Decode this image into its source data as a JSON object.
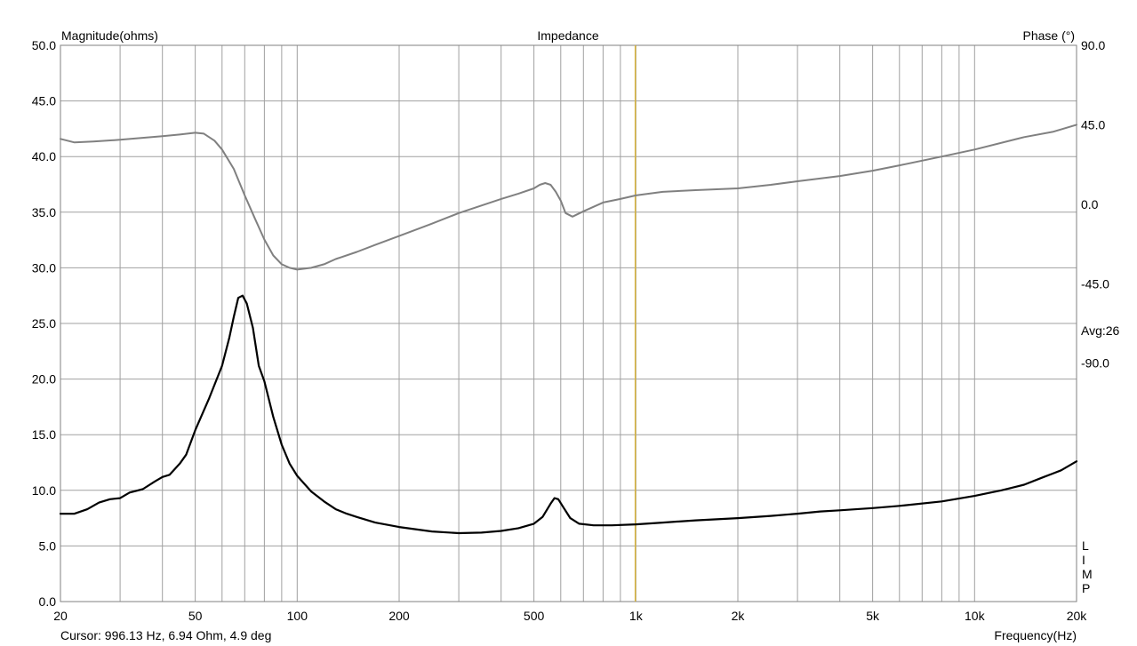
{
  "chart_data": {
    "type": "line",
    "title": "Impedance",
    "xlabel": "Frequency(Hz)",
    "ylabel": "Magnitude(ohms)",
    "y2label": "Phase (°)",
    "x_scale": "log",
    "xlim": [
      20,
      20000
    ],
    "ylim": [
      0,
      50
    ],
    "y2lim": [
      -225,
      90
    ],
    "grid": true,
    "x_ticks": [
      {
        "value": 20,
        "label": "20"
      },
      {
        "value": 50,
        "label": "50"
      },
      {
        "value": 100,
        "label": "100"
      },
      {
        "value": 200,
        "label": "200"
      },
      {
        "value": 500,
        "label": "500"
      },
      {
        "value": 1000,
        "label": "1k"
      },
      {
        "value": 2000,
        "label": "2k"
      },
      {
        "value": 5000,
        "label": "5k"
      },
      {
        "value": 10000,
        "label": "10k"
      },
      {
        "value": 20000,
        "label": "20k"
      }
    ],
    "y_ticks": [
      "0.0",
      "5.0",
      "10.0",
      "15.0",
      "20.0",
      "25.0",
      "30.0",
      "35.0",
      "40.0",
      "45.0",
      "50.0"
    ],
    "y2_ticks": [
      {
        "value": 90,
        "label": "90.0"
      },
      {
        "value": 45,
        "label": "45.0"
      },
      {
        "value": 0,
        "label": "0.0"
      },
      {
        "value": -45,
        "label": "-45.0"
      },
      {
        "value": -90,
        "label": "-90.0"
      }
    ],
    "series": [
      {
        "axis": "left",
        "color": "#000000",
        "points": [
          [
            20,
            7.9
          ],
          [
            22,
            7.9
          ],
          [
            24,
            8.3
          ],
          [
            26,
            8.9
          ],
          [
            28,
            9.2
          ],
          [
            30,
            9.3
          ],
          [
            32,
            9.8
          ],
          [
            35,
            10.1
          ],
          [
            38,
            10.8
          ],
          [
            40,
            11.2
          ],
          [
            42,
            11.4
          ],
          [
            45,
            12.4
          ],
          [
            47,
            13.2
          ],
          [
            50,
            15.4
          ],
          [
            55,
            18.3
          ],
          [
            60,
            21.2
          ],
          [
            63,
            23.7
          ],
          [
            65,
            25.6
          ],
          [
            67,
            27.3
          ],
          [
            69,
            27.5
          ],
          [
            71,
            26.8
          ],
          [
            74,
            24.6
          ],
          [
            77,
            21.2
          ],
          [
            80,
            19.8
          ],
          [
            85,
            16.6
          ],
          [
            90,
            14.1
          ],
          [
            95,
            12.4
          ],
          [
            100,
            11.3
          ],
          [
            110,
            9.9
          ],
          [
            120,
            9.0
          ],
          [
            130,
            8.3
          ],
          [
            140,
            7.9
          ],
          [
            150,
            7.6
          ],
          [
            170,
            7.1
          ],
          [
            200,
            6.7
          ],
          [
            250,
            6.3
          ],
          [
            300,
            6.15
          ],
          [
            350,
            6.2
          ],
          [
            400,
            6.35
          ],
          [
            450,
            6.6
          ],
          [
            500,
            7.0
          ],
          [
            530,
            7.6
          ],
          [
            560,
            8.8
          ],
          [
            575,
            9.3
          ],
          [
            590,
            9.2
          ],
          [
            610,
            8.5
          ],
          [
            640,
            7.5
          ],
          [
            680,
            7.0
          ],
          [
            750,
            6.85
          ],
          [
            850,
            6.85
          ],
          [
            1000,
            6.94
          ],
          [
            1200,
            7.1
          ],
          [
            1500,
            7.3
          ],
          [
            2000,
            7.5
          ],
          [
            2500,
            7.7
          ],
          [
            3000,
            7.9
          ],
          [
            3500,
            8.1
          ],
          [
            4000,
            8.2
          ],
          [
            5000,
            8.4
          ],
          [
            6000,
            8.6
          ],
          [
            8000,
            9.0
          ],
          [
            10000,
            9.5
          ],
          [
            12000,
            10.0
          ],
          [
            14000,
            10.5
          ],
          [
            16000,
            11.2
          ],
          [
            17000,
            11.5
          ],
          [
            18000,
            11.8
          ],
          [
            20000,
            12.6
          ]
        ]
      },
      {
        "axis": "right",
        "color": "#808080",
        "points": [
          [
            20,
            37
          ],
          [
            22,
            35
          ],
          [
            25,
            35.5
          ],
          [
            30,
            36.5
          ],
          [
            40,
            38.5
          ],
          [
            45,
            39.5
          ],
          [
            50,
            40.5
          ],
          [
            53,
            40
          ],
          [
            57,
            36
          ],
          [
            60,
            31
          ],
          [
            65,
            20
          ],
          [
            70,
            5
          ],
          [
            75,
            -8
          ],
          [
            80,
            -20
          ],
          [
            85,
            -29
          ],
          [
            90,
            -34
          ],
          [
            95,
            -36
          ],
          [
            100,
            -37
          ],
          [
            110,
            -36
          ],
          [
            120,
            -34
          ],
          [
            130,
            -31
          ],
          [
            150,
            -27
          ],
          [
            170,
            -23
          ],
          [
            200,
            -18
          ],
          [
            250,
            -11
          ],
          [
            300,
            -5
          ],
          [
            400,
            3
          ],
          [
            450,
            6
          ],
          [
            500,
            9
          ],
          [
            520,
            11
          ],
          [
            540,
            12
          ],
          [
            560,
            11
          ],
          [
            580,
            7
          ],
          [
            600,
            2
          ],
          [
            620,
            -5
          ],
          [
            650,
            -7
          ],
          [
            700,
            -4
          ],
          [
            800,
            1
          ],
          [
            900,
            3
          ],
          [
            1000,
            5
          ],
          [
            1200,
            7
          ],
          [
            1500,
            8
          ],
          [
            2000,
            9
          ],
          [
            2500,
            11
          ],
          [
            3000,
            13
          ],
          [
            4000,
            16
          ],
          [
            5000,
            19
          ],
          [
            6000,
            22
          ],
          [
            8000,
            27
          ],
          [
            10000,
            31
          ],
          [
            14000,
            38
          ],
          [
            17000,
            41
          ],
          [
            20000,
            45
          ]
        ]
      }
    ],
    "cursor": {
      "frequency": 996.13,
      "color": "#d7b43c"
    },
    "annotations": [
      "Avg:26",
      "Cursor: 996.13 Hz, 6.94 Ohm, 4.9 deg"
    ],
    "side_text": [
      "L",
      "I",
      "M",
      "P"
    ]
  }
}
